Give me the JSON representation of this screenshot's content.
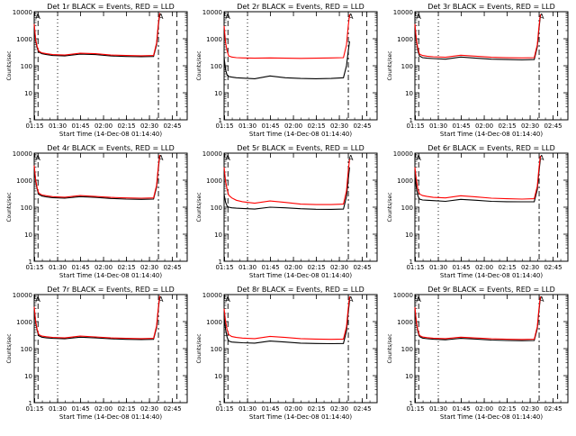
{
  "figure": {
    "xlabel": "Start Time (14-Dec-08 01:14:40)",
    "ylabel": "Counts/sec",
    "xticks": [
      "01:15",
      "01:30",
      "01:45",
      "02:00",
      "02:15",
      "02:30",
      "02:45"
    ],
    "ytick_labels": [
      "1",
      "10",
      "100",
      "1000",
      "10000"
    ],
    "marker_label": "A",
    "colors": {
      "events": "#000000",
      "lld": "#ff0000"
    }
  },
  "chart_data": [
    {
      "type": "line",
      "title": "Det 1r BLACK = Events, RED = LLD",
      "x_unit": "minutes after 01:14:40",
      "xlim": [
        0,
        100
      ],
      "ylim": [
        1,
        10000
      ],
      "yscale": "log",
      "xticks": [
        "01:15",
        "01:30",
        "01:45",
        "02:00",
        "02:15",
        "02:30",
        "02:45"
      ],
      "series": [
        {
          "name": "Events",
          "color": "#000000",
          "x": [
            0,
            1,
            2,
            3,
            5,
            8,
            12,
            20,
            30,
            40,
            50,
            60,
            70,
            78,
            80,
            81,
            82
          ],
          "y": [
            3000,
            800,
            450,
            320,
            280,
            260,
            240,
            230,
            270,
            260,
            230,
            220,
            215,
            220,
            600,
            2500,
            8000
          ]
        },
        {
          "name": "LLD",
          "color": "#ff0000",
          "x": [
            0,
            1,
            2,
            3,
            5,
            8,
            12,
            20,
            30,
            40,
            50,
            60,
            70,
            78,
            80,
            81,
            82
          ],
          "y": [
            3500,
            900,
            500,
            350,
            300,
            280,
            260,
            250,
            290,
            280,
            250,
            240,
            235,
            240,
            700,
            3000,
            9000
          ]
        }
      ]
    },
    {
      "type": "line",
      "title": "Det 2r BLACK = Events, RED = LLD",
      "x_unit": "minutes after 01:14:40",
      "xlim": [
        0,
        100
      ],
      "ylim": [
        1,
        10000
      ],
      "yscale": "log",
      "xticks": [
        "01:15",
        "01:30",
        "01:45",
        "02:00",
        "02:15",
        "02:30",
        "02:45"
      ],
      "series": [
        {
          "name": "Events",
          "color": "#000000",
          "x": [
            0,
            1,
            2,
            3,
            5,
            8,
            12,
            20,
            30,
            40,
            50,
            60,
            70,
            78,
            80,
            81,
            82
          ],
          "y": [
            200,
            70,
            45,
            40,
            38,
            36,
            35,
            33,
            42,
            36,
            34,
            33,
            34,
            36,
            100,
            300,
            800
          ]
        },
        {
          "name": "LLD",
          "color": "#ff0000",
          "x": [
            0,
            1,
            2,
            3,
            5,
            8,
            12,
            20,
            30,
            40,
            50,
            60,
            70,
            78,
            80,
            81,
            82
          ],
          "y": [
            3000,
            700,
            350,
            230,
            210,
            200,
            195,
            190,
            195,
            190,
            188,
            190,
            195,
            200,
            600,
            2500,
            8000
          ]
        }
      ]
    },
    {
      "type": "line",
      "title": "Det 3r BLACK = Events, RED = LLD",
      "x_unit": "minutes after 01:14:40",
      "xlim": [
        0,
        100
      ],
      "ylim": [
        1,
        10000
      ],
      "yscale": "log",
      "xticks": [
        "01:15",
        "01:30",
        "01:45",
        "02:00",
        "02:15",
        "02:30",
        "02:45"
      ],
      "series": [
        {
          "name": "Events",
          "color": "#000000",
          "x": [
            0,
            1,
            2,
            3,
            5,
            8,
            12,
            20,
            30,
            40,
            50,
            60,
            70,
            78,
            80,
            81,
            82
          ],
          "y": [
            3000,
            800,
            350,
            230,
            200,
            190,
            185,
            175,
            210,
            190,
            175,
            170,
            165,
            170,
            500,
            2000,
            7000
          ]
        },
        {
          "name": "LLD",
          "color": "#ff0000",
          "x": [
            0,
            1,
            2,
            3,
            5,
            8,
            12,
            20,
            30,
            40,
            50,
            60,
            70,
            78,
            80,
            81,
            82
          ],
          "y": [
            3500,
            900,
            420,
            270,
            240,
            225,
            215,
            205,
            245,
            225,
            205,
            198,
            195,
            200,
            600,
            2500,
            8000
          ]
        }
      ]
    },
    {
      "type": "line",
      "title": "Det 4r BLACK = Events, RED = LLD",
      "x_unit": "minutes after 01:14:40",
      "xlim": [
        0,
        100
      ],
      "ylim": [
        1,
        10000
      ],
      "yscale": "log",
      "xticks": [
        "01:15",
        "01:30",
        "01:45",
        "02:00",
        "02:15",
        "02:30",
        "02:45"
      ],
      "series": [
        {
          "name": "Events",
          "color": "#000000",
          "x": [
            0,
            1,
            2,
            3,
            5,
            8,
            12,
            20,
            30,
            40,
            50,
            60,
            70,
            78,
            80,
            81,
            82
          ],
          "y": [
            3000,
            900,
            450,
            300,
            260,
            240,
            225,
            215,
            245,
            230,
            210,
            200,
            195,
            200,
            550,
            2200,
            7500
          ]
        },
        {
          "name": "LLD",
          "color": "#ff0000",
          "x": [
            0,
            1,
            2,
            3,
            5,
            8,
            12,
            20,
            30,
            40,
            50,
            60,
            70,
            78,
            80,
            81,
            82
          ],
          "y": [
            3500,
            1000,
            500,
            330,
            285,
            265,
            245,
            235,
            270,
            250,
            230,
            220,
            215,
            220,
            650,
            2700,
            8500
          ]
        }
      ]
    },
    {
      "type": "line",
      "title": "Det 5r BLACK = Events, RED = LLD",
      "x_unit": "minutes after 01:14:40",
      "xlim": [
        0,
        100
      ],
      "ylim": [
        1,
        10000
      ],
      "yscale": "log",
      "xticks": [
        "01:15",
        "01:30",
        "01:45",
        "02:00",
        "02:15",
        "02:30",
        "02:45"
      ],
      "series": [
        {
          "name": "Events",
          "color": "#000000",
          "x": [
            0,
            1,
            2,
            3,
            5,
            8,
            12,
            20,
            30,
            40,
            50,
            60,
            70,
            78,
            80,
            81,
            82
          ],
          "y": [
            300,
            150,
            110,
            100,
            95,
            92,
            90,
            85,
            100,
            95,
            88,
            84,
            83,
            85,
            250,
            900,
            3000
          ]
        },
        {
          "name": "LLD",
          "color": "#ff0000",
          "x": [
            0,
            1,
            2,
            3,
            5,
            8,
            12,
            20,
            30,
            40,
            50,
            60,
            70,
            78,
            80,
            81,
            82
          ],
          "y": [
            3000,
            900,
            450,
            280,
            220,
            180,
            160,
            140,
            170,
            150,
            130,
            125,
            125,
            130,
            400,
            1800,
            6000
          ]
        }
      ]
    },
    {
      "type": "line",
      "title": "Det 6r BLACK = Events, RED = LLD",
      "x_unit": "minutes after 01:14:40",
      "xlim": [
        0,
        100
      ],
      "ylim": [
        1,
        10000
      ],
      "yscale": "log",
      "xticks": [
        "01:15",
        "01:30",
        "01:45",
        "02:00",
        "02:15",
        "02:30",
        "02:45"
      ],
      "series": [
        {
          "name": "Events",
          "color": "#000000",
          "x": [
            0,
            1,
            2,
            3,
            5,
            8,
            12,
            20,
            30,
            40,
            50,
            60,
            70,
            78,
            80,
            81,
            82
          ],
          "y": [
            1500,
            500,
            260,
            200,
            185,
            180,
            175,
            165,
            195,
            180,
            165,
            160,
            158,
            160,
            450,
            1800,
            6000
          ]
        },
        {
          "name": "LLD",
          "color": "#ff0000",
          "x": [
            0,
            1,
            2,
            3,
            5,
            8,
            12,
            20,
            30,
            40,
            50,
            60,
            70,
            78,
            80,
            81,
            82
          ],
          "y": [
            3000,
            1000,
            450,
            310,
            270,
            250,
            230,
            220,
            265,
            240,
            215,
            205,
            200,
            205,
            600,
            2500,
            8000
          ]
        }
      ]
    },
    {
      "type": "line",
      "title": "Det 7r BLACK = Events, RED = LLD",
      "x_unit": "minutes after 01:14:40",
      "xlim": [
        0,
        100
      ],
      "ylim": [
        1,
        10000
      ],
      "yscale": "log",
      "xticks": [
        "01:15",
        "01:30",
        "01:45",
        "02:00",
        "02:15",
        "02:30",
        "02:45"
      ],
      "series": [
        {
          "name": "Events",
          "color": "#000000",
          "x": [
            0,
            1,
            2,
            3,
            5,
            8,
            12,
            20,
            30,
            40,
            50,
            60,
            70,
            78,
            80,
            81,
            82
          ],
          "y": [
            3000,
            900,
            450,
            300,
            265,
            250,
            240,
            230,
            265,
            250,
            230,
            220,
            215,
            220,
            600,
            2400,
            8000
          ]
        },
        {
          "name": "LLD",
          "color": "#ff0000",
          "x": [
            0,
            1,
            2,
            3,
            5,
            8,
            12,
            20,
            30,
            40,
            50,
            60,
            70,
            78,
            80,
            81,
            82
          ],
          "y": [
            3500,
            1000,
            500,
            330,
            290,
            275,
            262,
            250,
            290,
            272,
            250,
            240,
            235,
            240,
            700,
            2800,
            9000
          ]
        }
      ]
    },
    {
      "type": "line",
      "title": "Det 8r BLACK = Events, RED = LLD",
      "x_unit": "minutes after 01:14:40",
      "xlim": [
        0,
        100
      ],
      "ylim": [
        1,
        10000
      ],
      "yscale": "log",
      "xticks": [
        "01:15",
        "01:30",
        "01:45",
        "02:00",
        "02:15",
        "02:30",
        "02:45"
      ],
      "series": [
        {
          "name": "Events",
          "color": "#000000",
          "x": [
            0,
            1,
            2,
            3,
            5,
            8,
            12,
            20,
            30,
            40,
            50,
            60,
            70,
            78,
            80,
            81,
            82
          ],
          "y": [
            1500,
            500,
            260,
            190,
            175,
            170,
            165,
            160,
            190,
            175,
            160,
            155,
            152,
            155,
            450,
            1800,
            6000
          ]
        },
        {
          "name": "LLD",
          "color": "#ff0000",
          "x": [
            0,
            1,
            2,
            3,
            5,
            8,
            12,
            20,
            30,
            40,
            50,
            60,
            70,
            78,
            80,
            81,
            82
          ],
          "y": [
            3000,
            1000,
            500,
            330,
            280,
            260,
            245,
            235,
            285,
            260,
            235,
            225,
            220,
            225,
            650,
            2600,
            8500
          ]
        }
      ]
    },
    {
      "type": "line",
      "title": "Det 9r BLACK = Events, RED = LLD",
      "x_unit": "minutes after 01:14:40",
      "xlim": [
        0,
        100
      ],
      "ylim": [
        1,
        10000
      ],
      "yscale": "log",
      "xticks": [
        "01:15",
        "01:30",
        "01:45",
        "02:00",
        "02:15",
        "02:30",
        "02:45"
      ],
      "series": [
        {
          "name": "Events",
          "color": "#000000",
          "x": [
            0,
            1,
            2,
            3,
            5,
            8,
            12,
            20,
            30,
            40,
            50,
            60,
            70,
            78,
            80,
            81,
            82
          ],
          "y": [
            3000,
            850,
            420,
            280,
            245,
            232,
            222,
            212,
            240,
            225,
            208,
            200,
            196,
            200,
            550,
            2200,
            7500
          ]
        },
        {
          "name": "LLD",
          "color": "#ff0000",
          "x": [
            0,
            1,
            2,
            3,
            5,
            8,
            12,
            20,
            30,
            40,
            50,
            60,
            70,
            78,
            80,
            81,
            82
          ],
          "y": [
            3400,
            950,
            470,
            310,
            270,
            255,
            244,
            234,
            265,
            248,
            230,
            222,
            218,
            222,
            650,
            2700,
            8500
          ]
        }
      ]
    }
  ]
}
